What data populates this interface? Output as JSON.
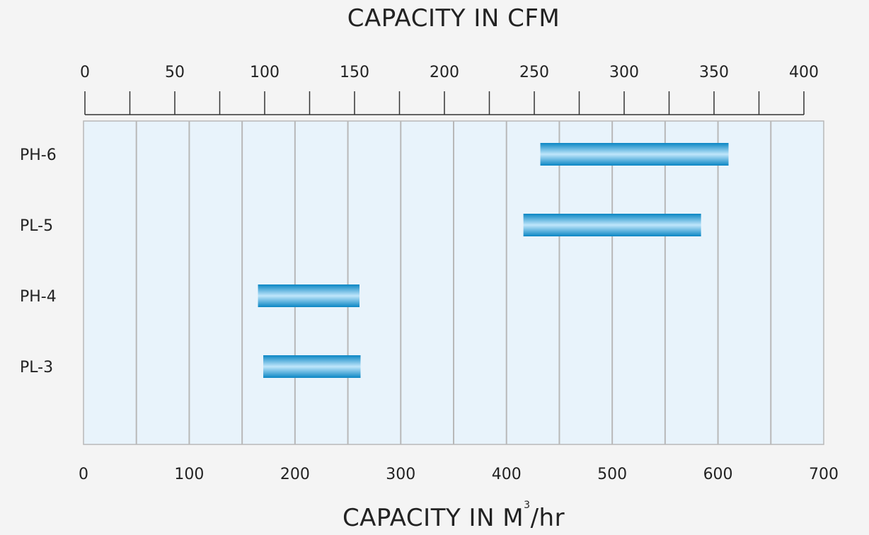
{
  "chart_data": {
    "type": "bar",
    "orientation": "horizontal-range",
    "title_top": "CAPACITY IN CFM",
    "title_bottom": {
      "main": "CAPACITY IN M",
      "sup": "3",
      "suffix": "/hr"
    },
    "categories": [
      "PH-6",
      "PL-5",
      "PH-4",
      "PL-3"
    ],
    "ranges_m3hr": [
      {
        "name": "PH-6",
        "start": 432,
        "end": 610
      },
      {
        "name": "PL-5",
        "start": 416,
        "end": 584
      },
      {
        "name": "PH-4",
        "start": 165,
        "end": 261
      },
      {
        "name": "PL-3",
        "start": 170,
        "end": 262
      }
    ],
    "x_bottom": {
      "label": "CAPACITY IN M3/hr",
      "lim": [
        0,
        700
      ],
      "ticks": [
        0,
        100,
        200,
        300,
        400,
        500,
        600,
        700
      ],
      "gridlines": [
        0,
        50,
        100,
        150,
        200,
        250,
        300,
        350,
        400,
        450,
        500,
        550,
        600,
        650,
        700
      ]
    },
    "x_top": {
      "label": "CAPACITY IN CFM",
      "lim": [
        0,
        400
      ],
      "ticks": [
        0,
        50,
        100,
        150,
        200,
        250,
        300,
        350,
        400
      ],
      "minor_ticks": [
        25,
        75,
        125,
        175,
        225,
        275,
        325,
        375
      ]
    },
    "grid": true,
    "colors": {
      "background": "#f4f4f4",
      "plot_bg": "#e8f3fb",
      "grid": "#b8b8b8",
      "bar_edge": "#0a86c4",
      "bar_mid": "#bfe6fb",
      "text": "#222222"
    }
  }
}
